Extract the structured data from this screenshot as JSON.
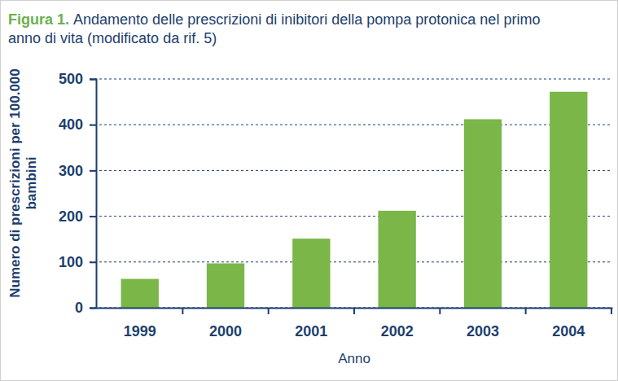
{
  "chart_data": {
    "type": "bar",
    "title": "Figura 1. Andamento delle prescrizioni di inibitori della pompa protonica nel primo anno di vita (modificato da rif. 5)",
    "x_label": "Anno",
    "y_label": "Numero di prescrizioni per 100.000 bambini",
    "categories": [
      "1999",
      "2000",
      "2001",
      "2002",
      "2003",
      "2004"
    ],
    "values": [
      63,
      97,
      151,
      212,
      412,
      472
    ],
    "color": "#7ab648",
    "ylim": [
      0,
      500
    ],
    "yticks": [
      0,
      100,
      200,
      300,
      400,
      500
    ],
    "grid": true
  }
}
